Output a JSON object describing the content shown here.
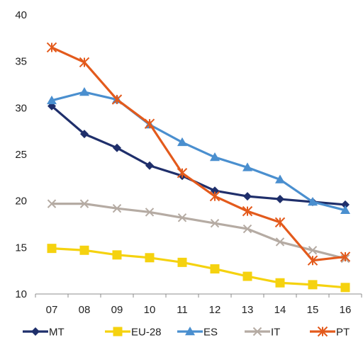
{
  "chart_data": {
    "type": "line",
    "title": "",
    "xlabel": "",
    "ylabel": "",
    "categories": [
      "07",
      "08",
      "09",
      "10",
      "11",
      "12",
      "13",
      "14",
      "15",
      "16"
    ],
    "ylim": [
      10,
      40
    ],
    "yticks": [
      10,
      15,
      20,
      25,
      30,
      35,
      40
    ],
    "grid": false,
    "legend_position": "bottom",
    "series": [
      {
        "name": "MT",
        "color": "#1f2f6b",
        "marker": "diamond",
        "values": [
          30.2,
          27.2,
          25.7,
          23.8,
          22.7,
          21.1,
          20.5,
          20.2,
          19.9,
          19.6
        ]
      },
      {
        "name": "EU-28",
        "color": "#f5d20f",
        "marker": "square",
        "values": [
          14.9,
          14.7,
          14.2,
          13.9,
          13.4,
          12.7,
          11.9,
          11.2,
          11.0,
          10.7
        ]
      },
      {
        "name": "ES",
        "color": "#4a8fcf",
        "marker": "triangle",
        "values": [
          30.8,
          31.7,
          30.9,
          28.2,
          26.3,
          24.7,
          23.6,
          22.3,
          19.9,
          19.0
        ]
      },
      {
        "name": "IT",
        "color": "#b5aba3",
        "marker": "x",
        "values": [
          19.7,
          19.7,
          19.2,
          18.8,
          18.2,
          17.6,
          17.0,
          15.6,
          14.7,
          13.8
        ]
      },
      {
        "name": "PT",
        "color": "#e35a1c",
        "marker": "star",
        "values": [
          36.5,
          34.9,
          30.9,
          28.3,
          23.0,
          20.5,
          18.9,
          17.7,
          13.6,
          14.0
        ]
      }
    ]
  }
}
